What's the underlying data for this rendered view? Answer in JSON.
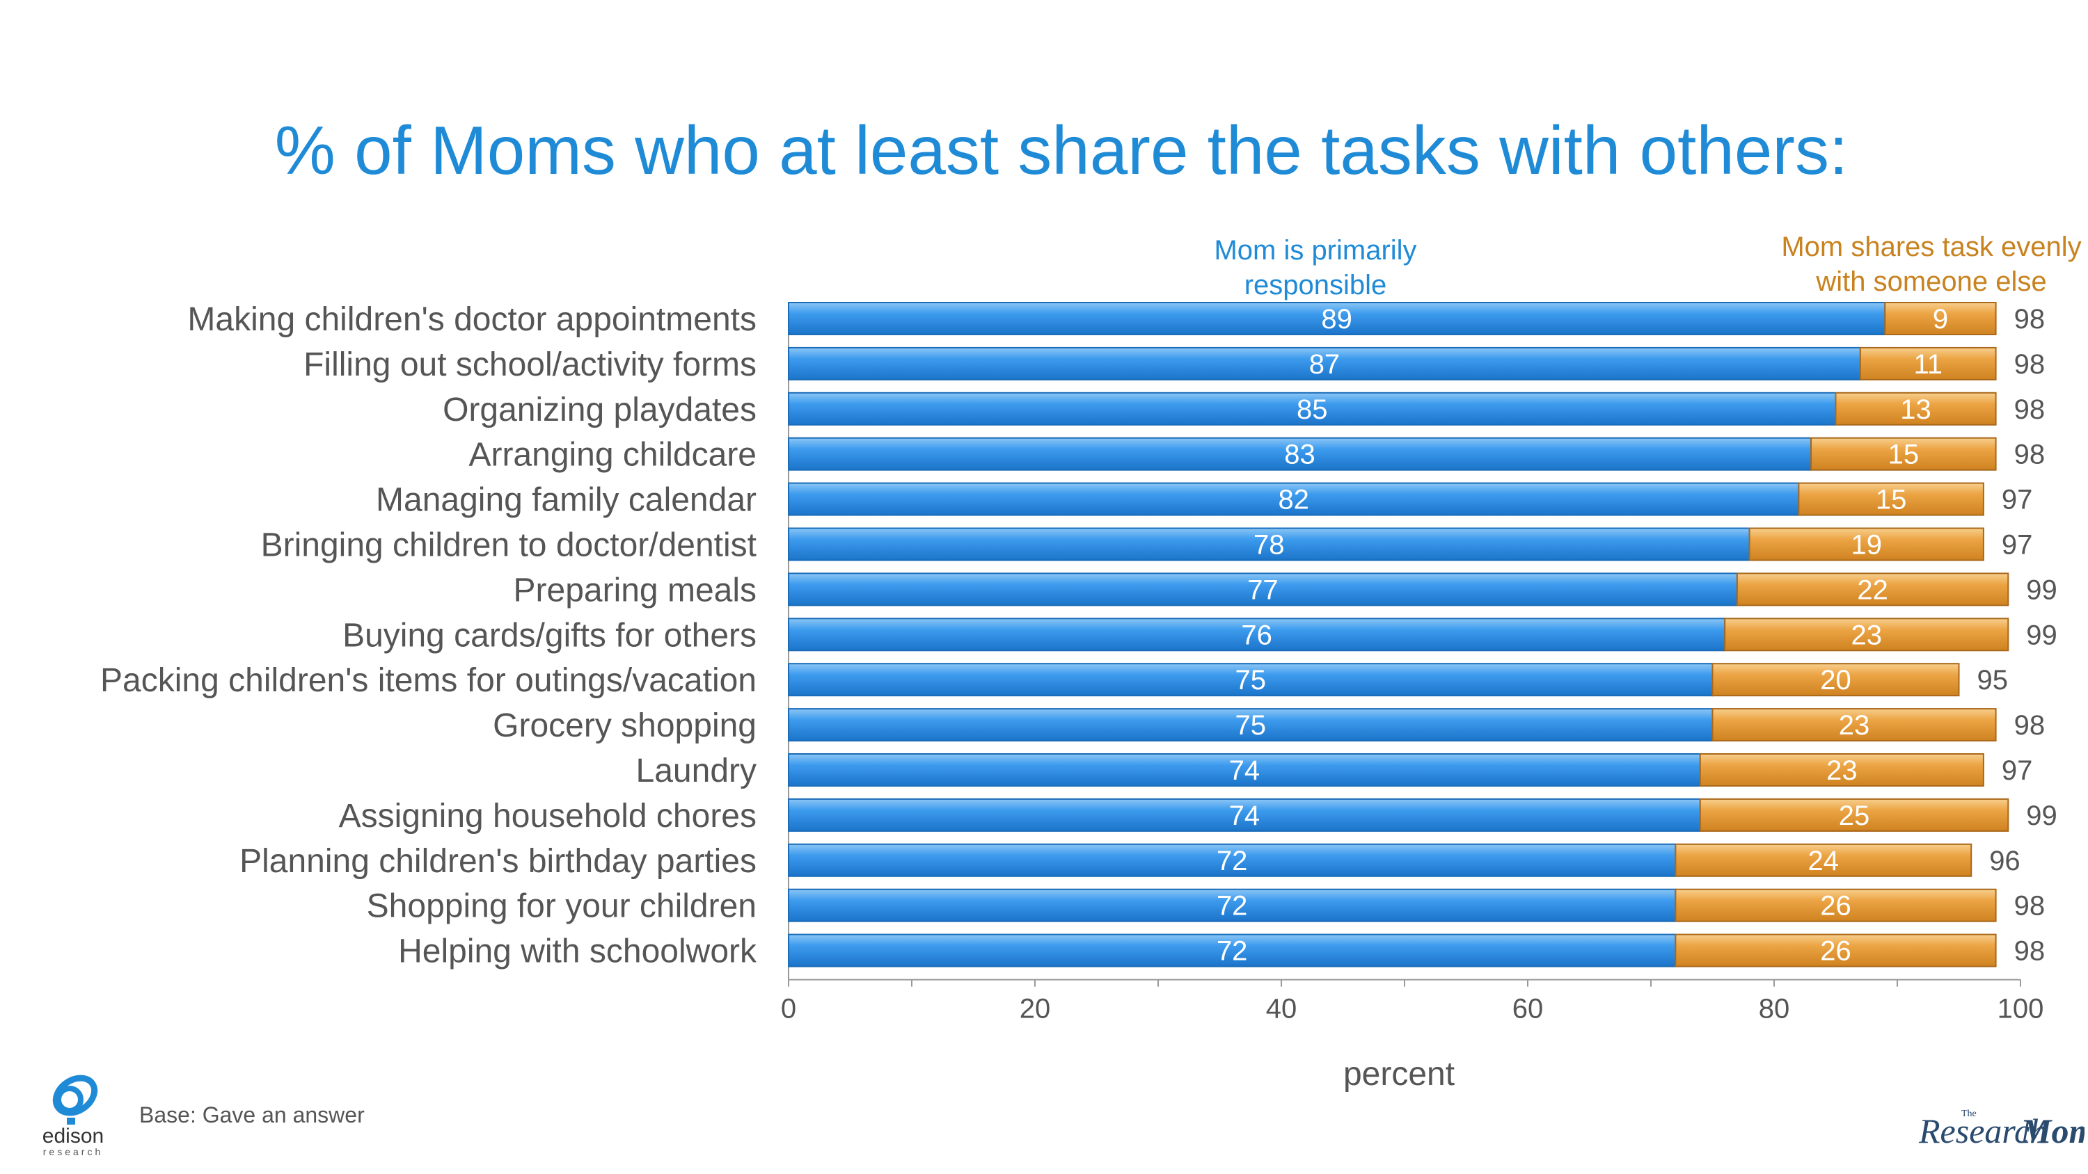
{
  "title": "% of Moms who at least share the tasks with others:",
  "legend": {
    "primary": [
      "Mom is primarily",
      "responsible"
    ],
    "shared": [
      "Mom shares task evenly",
      "with someone else"
    ]
  },
  "footnote": "Base: Gave an answer",
  "logos": {
    "edison": {
      "name": "edison",
      "sub": "research"
    },
    "research_moms": {
      "the": "The",
      "research": "Research",
      "moms": "Moms"
    }
  },
  "colors": {
    "primary": "#2e90ea",
    "shared": "#e89b34",
    "title": "#1f8bd6",
    "label": "#555555"
  },
  "chart_data": {
    "type": "bar",
    "orientation": "horizontal",
    "stacked": true,
    "categories": [
      "Making children's doctor appointments",
      "Filling out school/activity forms",
      "Organizing playdates",
      "Arranging childcare",
      "Managing family calendar",
      "Bringing children to doctor/dentist",
      "Preparing meals",
      "Buying cards/gifts for others",
      "Packing children's items for outings/vacation",
      "Grocery shopping",
      "Laundry",
      "Assigning household chores",
      "Planning children's birthday parties",
      "Shopping for your children",
      "Helping with schoolwork"
    ],
    "series": [
      {
        "name": "Mom is primarily responsible",
        "values": [
          89,
          87,
          85,
          83,
          82,
          78,
          77,
          76,
          75,
          75,
          74,
          74,
          72,
          72,
          72
        ]
      },
      {
        "name": "Mom shares task evenly with someone else",
        "values": [
          9,
          11,
          13,
          15,
          15,
          19,
          22,
          23,
          20,
          23,
          23,
          25,
          24,
          26,
          26
        ]
      }
    ],
    "totals": [
      98,
      98,
      98,
      98,
      97,
      97,
      99,
      99,
      95,
      98,
      97,
      99,
      96,
      98,
      98
    ],
    "xlabel": "percent",
    "xlim": [
      0,
      100
    ],
    "xticks": [
      0,
      20,
      40,
      60,
      80,
      100
    ],
    "grid": false
  }
}
